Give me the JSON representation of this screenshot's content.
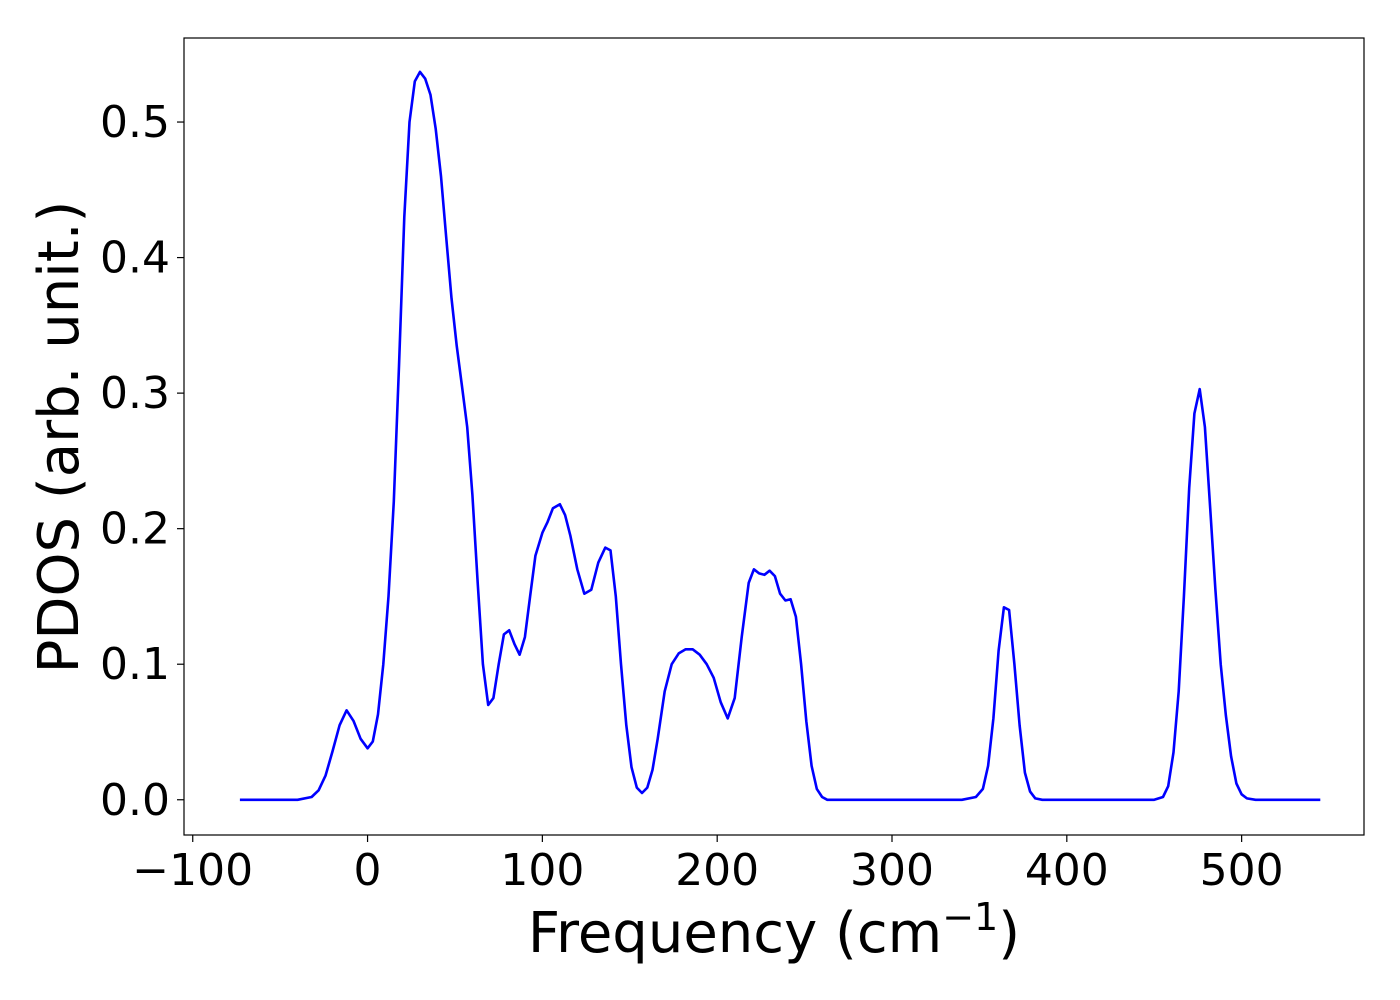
{
  "chart_data": {
    "type": "line",
    "title": "",
    "xlabel": "Frequency (cm",
    "xlabel_unit_exponent": "−1",
    "xlabel_close": ")",
    "ylabel": "PDOS (arb. unit.)",
    "xlim": [
      -105,
      570
    ],
    "ylim": [
      -0.026,
      0.562
    ],
    "xticks": [
      -100,
      0,
      100,
      200,
      300,
      400,
      500
    ],
    "xtick_labels": [
      "−100",
      "0",
      "100",
      "200",
      "300",
      "400",
      "500"
    ],
    "yticks": [
      0.0,
      0.1,
      0.2,
      0.3,
      0.4,
      0.5
    ],
    "ytick_labels": [
      "0.0",
      "0.1",
      "0.2",
      "0.3",
      "0.4",
      "0.5"
    ],
    "grid": false,
    "line_color": "#0000ff",
    "series": [
      {
        "x": [
          -73,
          -40,
          -32,
          -28,
          -24,
          -20,
          -16,
          -12,
          -8,
          -4,
          0,
          3,
          6,
          9,
          12,
          15,
          18,
          21,
          24,
          27,
          30,
          33,
          36,
          39,
          42,
          45,
          48,
          51,
          54,
          57,
          60,
          63,
          66,
          69,
          72,
          75,
          78,
          81,
          84,
          87,
          90,
          93,
          96,
          100,
          103,
          106,
          110,
          113,
          116,
          120,
          124,
          128,
          132,
          136,
          139,
          142,
          145,
          148,
          151,
          154,
          157,
          160,
          163,
          166,
          170,
          174,
          178,
          182,
          186,
          190,
          194,
          198,
          202,
          206,
          210,
          214,
          218,
          221,
          224,
          227,
          230,
          233,
          236,
          239,
          242,
          245,
          248,
          251,
          254,
          257,
          260,
          263,
          268,
          340,
          348,
          352,
          355,
          358,
          361,
          364,
          367,
          370,
          373,
          376,
          379,
          382,
          386,
          395,
          450,
          455,
          458,
          461,
          464,
          467,
          470,
          473,
          476,
          479,
          482,
          485,
          488,
          491,
          494,
          497,
          500,
          503,
          508,
          545
        ],
        "y": [
          0.0,
          0.0,
          0.002,
          0.007,
          0.018,
          0.036,
          0.055,
          0.066,
          0.058,
          0.045,
          0.038,
          0.043,
          0.063,
          0.1,
          0.15,
          0.22,
          0.32,
          0.43,
          0.5,
          0.53,
          0.537,
          0.532,
          0.52,
          0.495,
          0.46,
          0.415,
          0.37,
          0.335,
          0.305,
          0.275,
          0.225,
          0.16,
          0.1,
          0.07,
          0.075,
          0.1,
          0.122,
          0.125,
          0.115,
          0.107,
          0.12,
          0.15,
          0.18,
          0.197,
          0.205,
          0.215,
          0.218,
          0.21,
          0.195,
          0.17,
          0.152,
          0.155,
          0.175,
          0.186,
          0.184,
          0.15,
          0.1,
          0.055,
          0.024,
          0.009,
          0.005,
          0.009,
          0.022,
          0.045,
          0.08,
          0.1,
          0.108,
          0.111,
          0.111,
          0.107,
          0.1,
          0.09,
          0.072,
          0.06,
          0.075,
          0.12,
          0.16,
          0.17,
          0.167,
          0.166,
          0.169,
          0.165,
          0.152,
          0.147,
          0.148,
          0.135,
          0.1,
          0.058,
          0.025,
          0.008,
          0.002,
          0.0,
          0.0,
          0.0,
          0.002,
          0.008,
          0.025,
          0.06,
          0.11,
          0.142,
          0.14,
          0.1,
          0.055,
          0.02,
          0.006,
          0.001,
          0.0,
          0.0,
          0.0,
          0.002,
          0.01,
          0.035,
          0.08,
          0.15,
          0.23,
          0.285,
          0.303,
          0.275,
          0.215,
          0.155,
          0.1,
          0.062,
          0.032,
          0.012,
          0.004,
          0.001,
          0.0,
          0.0
        ]
      }
    ]
  }
}
